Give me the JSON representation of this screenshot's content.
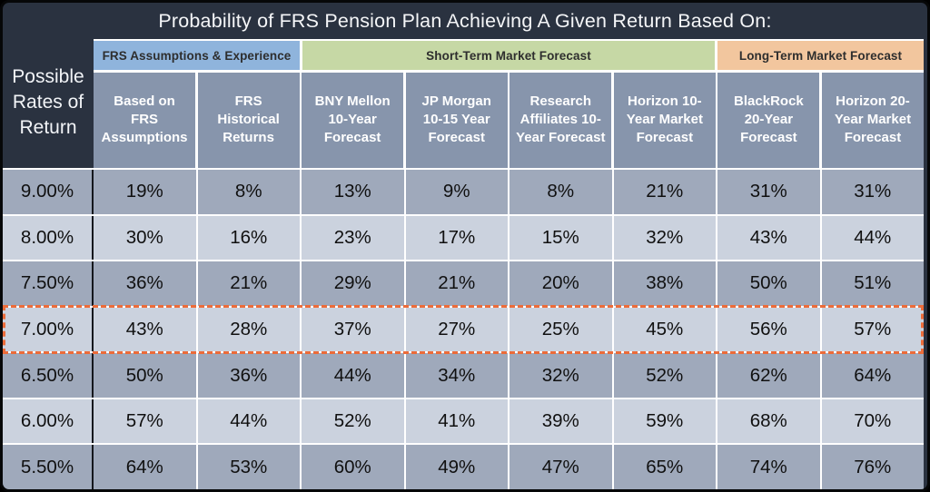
{
  "chart_data": {
    "type": "table",
    "title": "Probability of FRS Pension Plan Achieving A Given Return Based On:",
    "row_axis_label": "Possible Rates of Return",
    "column_groups": [
      {
        "label": "FRS Assumptions & Experience",
        "span": 2,
        "color": "#8FB4DC"
      },
      {
        "label": "Short-Term Market Forecast",
        "span": 4,
        "color": "#C6D8A5"
      },
      {
        "label": "Long-Term Market Forecast",
        "span": 2,
        "color": "#F2C69E"
      }
    ],
    "columns": [
      "Based on FRS Assumptions",
      "FRS Historical Returns",
      "BNY Mellon 10-Year Forecast",
      "JP Morgan 10-15 Year Forecast",
      "Research Affiliates 10-Year Forecast",
      "Horizon 10-Year Market Forecast",
      "BlackRock 20-Year Forecast",
      "Horizon 20-Year Market Forecast"
    ],
    "rows": [
      {
        "rate": "9.00%",
        "values": [
          "19%",
          "8%",
          "13%",
          "9%",
          "8%",
          "21%",
          "31%",
          "31%"
        ],
        "highlighted_columns": [],
        "outlined": false
      },
      {
        "rate": "8.00%",
        "values": [
          "30%",
          "16%",
          "23%",
          "17%",
          "15%",
          "32%",
          "43%",
          "44%"
        ],
        "highlighted_columns": [],
        "outlined": false
      },
      {
        "rate": "7.50%",
        "values": [
          "36%",
          "21%",
          "29%",
          "21%",
          "20%",
          "38%",
          "50%",
          "51%"
        ],
        "highlighted_columns": [
          6,
          7
        ],
        "outlined": false
      },
      {
        "rate": "7.00%",
        "values": [
          "43%",
          "28%",
          "37%",
          "27%",
          "25%",
          "45%",
          "56%",
          "57%"
        ],
        "highlighted_columns": [],
        "outlined": true
      },
      {
        "rate": "6.50%",
        "values": [
          "50%",
          "36%",
          "44%",
          "34%",
          "32%",
          "52%",
          "62%",
          "64%"
        ],
        "highlighted_columns": [
          0,
          5
        ],
        "outlined": false
      },
      {
        "rate": "6.00%",
        "values": [
          "57%",
          "44%",
          "52%",
          "41%",
          "39%",
          "59%",
          "68%",
          "70%"
        ],
        "highlighted_columns": [
          2
        ],
        "outlined": false
      },
      {
        "rate": "5.50%",
        "values": [
          "64%",
          "53%",
          "60%",
          "49%",
          "47%",
          "65%",
          "74%",
          "76%"
        ],
        "highlighted_columns": [
          1,
          3,
          4
        ],
        "outlined": false
      }
    ]
  },
  "colors": {
    "background": "#2A3240",
    "gridline": "#FFFFFF",
    "label_divider": "#14171D",
    "column_header": "#8795AC",
    "row_dark": "#9FA9BB",
    "row_light": "#CBD2DE",
    "highlight": "#EEA96F",
    "outline_dashed": "#EC6C3A"
  }
}
